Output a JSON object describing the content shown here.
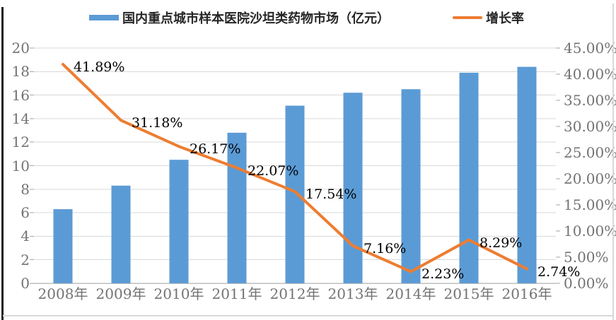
{
  "legend": {
    "series1_label": "国内重点城市样本医院沙坦类药物市场（亿元）",
    "series2_label": "增长率"
  },
  "chart_data": {
    "type": "combo-bar-line",
    "categories": [
      "2008年",
      "2009年",
      "2010年",
      "2011年",
      "2012年",
      "2013年",
      "2014年",
      "2015年",
      "2016年"
    ],
    "series": [
      {
        "name": "国内重点城市样本医院沙坦类药物市场（亿元）",
        "type": "bar",
        "axis": "left",
        "values": [
          6.3,
          8.3,
          10.5,
          12.8,
          15.1,
          16.2,
          16.5,
          17.9,
          18.4
        ]
      },
      {
        "name": "增长率",
        "type": "line",
        "axis": "right",
        "values": [
          41.89,
          31.18,
          26.17,
          22.07,
          17.54,
          7.16,
          2.23,
          8.29,
          2.74
        ],
        "data_labels": [
          "41.89%",
          "31.18%",
          "26.17%",
          "22.07%",
          "17.54%",
          "7.16%",
          "2.23%",
          "8.29%",
          "2.74%"
        ]
      }
    ],
    "left_axis": {
      "min": 0,
      "max": 20,
      "step": 2,
      "tick_labels": [
        "0",
        "2",
        "4",
        "6",
        "8",
        "10",
        "12",
        "14",
        "16",
        "18",
        "20"
      ]
    },
    "right_axis": {
      "min": 0,
      "max": 45,
      "step": 5,
      "tick_labels": [
        "0.00%",
        "5.00%",
        "10.00%",
        "15.00%",
        "20.00%",
        "25.00%",
        "30.00%",
        "35.00%",
        "40.00%",
        "45.00%"
      ]
    },
    "grid": true,
    "legend_position": "top"
  },
  "colors": {
    "bar": "#5B9BD5",
    "line": "#ED7D31",
    "gridline": "#D9D9D9",
    "axis_line": "#BFBFBF",
    "tick_mark": "#A6A6A6",
    "tick_text": "#737373",
    "data_label_text": "#000000",
    "legend_text": "#262626"
  }
}
